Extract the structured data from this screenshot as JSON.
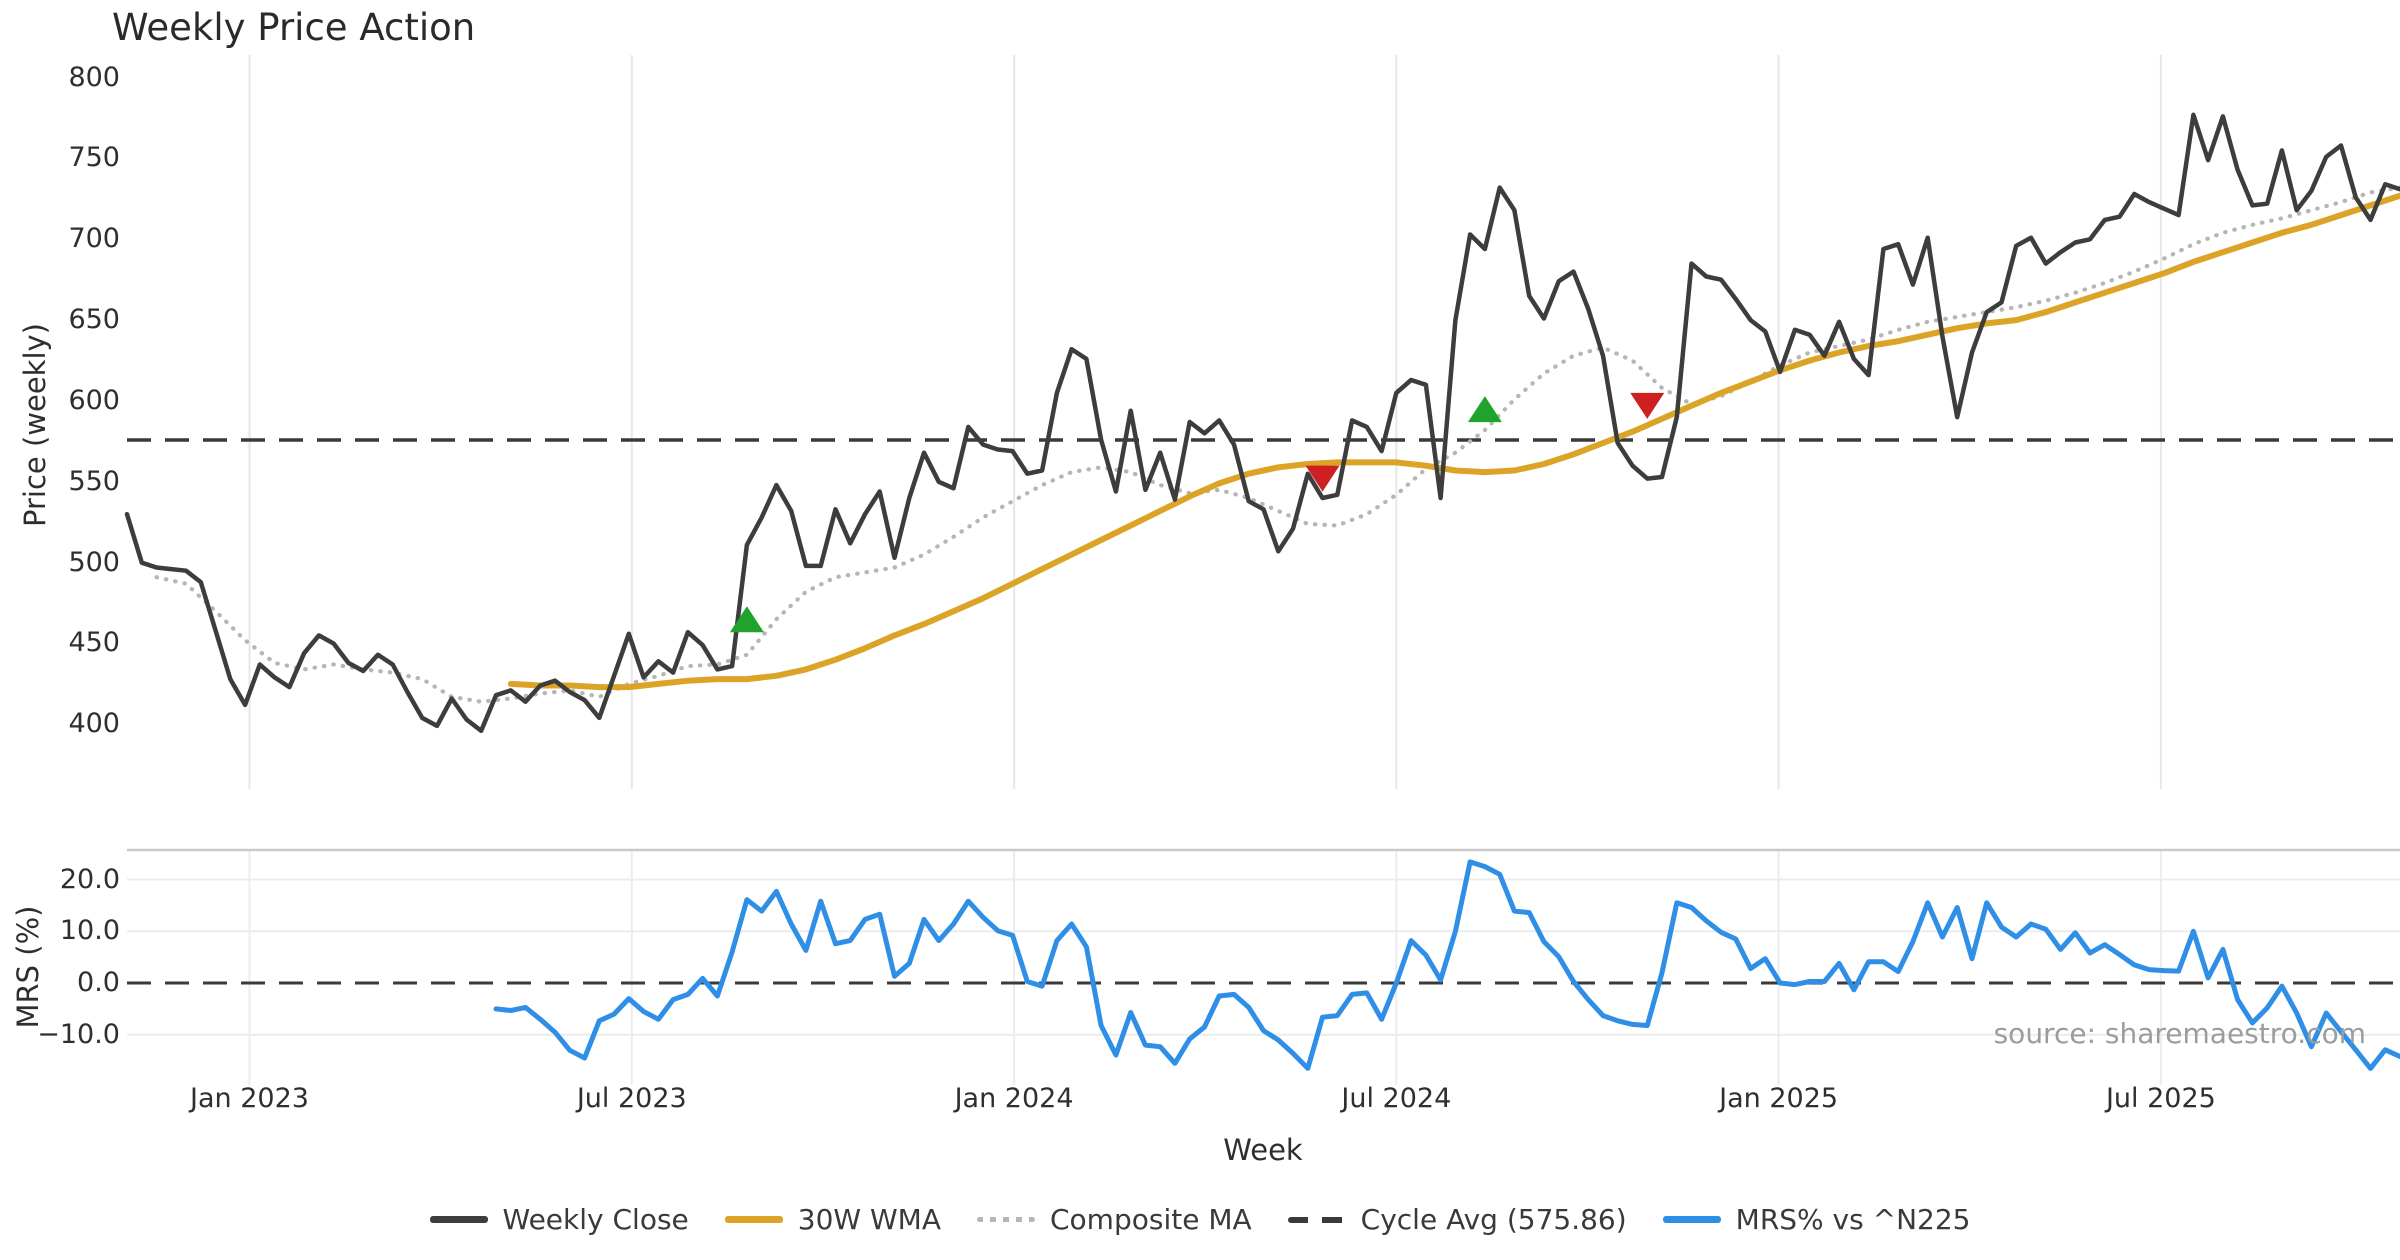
{
  "title": "Weekly Price Action",
  "source_note": "source: sharemaestro.com",
  "axes": {
    "price_label": "Price (weekly)",
    "mrs_label": "MRS (%)",
    "x_label": "Week"
  },
  "legend": {
    "items": [
      {
        "label": "Weekly Close",
        "color": "#3d3d3d",
        "style": "solid"
      },
      {
        "label": "30W WMA",
        "color": "#dba427",
        "style": "solid"
      },
      {
        "label": "Composite MA",
        "color": "#b6b6b6",
        "style": "dotted"
      },
      {
        "label": "Cycle Avg (575.86)",
        "color": "#3a3a3a",
        "style": "dashed"
      },
      {
        "label": "MRS% vs ^N225",
        "color": "#2f8fe6",
        "style": "solid"
      }
    ]
  },
  "chart_data": [
    {
      "type": "line",
      "panel": "price",
      "title": "Weekly Price Action",
      "ylabel": "Price (weekly)",
      "ylim": [
        360,
        814
      ],
      "yticks": [
        400,
        450,
        500,
        550,
        600,
        650,
        700,
        750,
        800
      ],
      "grid": "vertical-only",
      "x_axis": {
        "unit": "weeks",
        "total_weeks": 155,
        "tick_weeks": [
          8.3,
          34.2,
          60.1,
          86.0,
          111.9,
          137.8
        ],
        "tick_labels": [
          "Jan 2023",
          "Jul 2023",
          "Jan 2024",
          "Jul 2024",
          "Jan 2025",
          "Jul 2025"
        ]
      },
      "cycle_avg": {
        "name": "Cycle Avg",
        "value": 575.86,
        "color": "#3a3a3a",
        "style": "dashed"
      },
      "series": [
        {
          "name": "Weekly Close",
          "color": "#3d3d3d",
          "style": "solid",
          "width": 4.5,
          "start_week": 0,
          "step": 1,
          "values": [
            530,
            500,
            497,
            496,
            495,
            488,
            458,
            428,
            412,
            437,
            429,
            423,
            444,
            455,
            450,
            438,
            433,
            443,
            437,
            420,
            404,
            399,
            416,
            403,
            396,
            418,
            421,
            414,
            424,
            427,
            420,
            415,
            404,
            430,
            456,
            429,
            439,
            432,
            457,
            449,
            434,
            436,
            511,
            528,
            548,
            532,
            498,
            498,
            533,
            512,
            530,
            544,
            503,
            540,
            568,
            550,
            546,
            584,
            573,
            570,
            569,
            555,
            557,
            605,
            632,
            626,
            576,
            544,
            594,
            545,
            568,
            539,
            587,
            580,
            588,
            573,
            538,
            533,
            507,
            521,
            555,
            540,
            542,
            588,
            584,
            569,
            605,
            613,
            610,
            540,
            650,
            703,
            694,
            732,
            718,
            665,
            651,
            674,
            680,
            657,
            628,
            574,
            560,
            552,
            553,
            590,
            685,
            677,
            675,
            663,
            650,
            643,
            618,
            644,
            641,
            628,
            649,
            626,
            616,
            694,
            697,
            672,
            701,
            640,
            590,
            630,
            655,
            661,
            696,
            701,
            685,
            692,
            698,
            700,
            712,
            714,
            728,
            723,
            719,
            715,
            777,
            749,
            776,
            743,
            721,
            722,
            755,
            718,
            730,
            751,
            758,
            726,
            712,
            734,
            731
          ]
        },
        {
          "name": "30W WMA",
          "color": "#dba427",
          "style": "solid",
          "width": 6,
          "start_week": 26,
          "step": 2,
          "values": [
            425,
            424,
            424,
            423,
            423,
            425,
            427,
            428,
            428,
            430,
            434,
            440,
            447,
            455,
            462,
            470,
            478,
            487,
            496,
            505,
            514,
            523,
            532,
            541,
            549,
            555,
            559,
            561,
            562,
            562,
            562,
            560,
            557,
            556,
            557,
            561,
            567,
            574,
            581,
            589,
            597,
            605,
            612,
            619,
            625,
            630,
            634,
            637,
            641,
            645,
            648,
            650,
            655,
            661,
            667,
            673,
            679,
            686,
            692,
            698,
            704,
            709,
            715,
            721,
            727
          ]
        },
        {
          "name": "Composite MA",
          "color": "#b6b6b6",
          "style": "dotted",
          "width": 4.2,
          "start_week": 2,
          "step": 2,
          "values": [
            491,
            487,
            470,
            452,
            438,
            434,
            437,
            434,
            432,
            428,
            417,
            414,
            416,
            419,
            421,
            417,
            425,
            430,
            436,
            437,
            443,
            465,
            482,
            491,
            494,
            497,
            505,
            516,
            528,
            538,
            548,
            556,
            559,
            556,
            548,
            543,
            545,
            540,
            532,
            524,
            523,
            530,
            542,
            558,
            568,
            582,
            601,
            617,
            628,
            633,
            625,
            608,
            598,
            603,
            612,
            622,
            630,
            634,
            638,
            644,
            649,
            652,
            655,
            658,
            662,
            667,
            673,
            680,
            688,
            697,
            704,
            709,
            713,
            718,
            723,
            729,
            732
          ]
        }
      ],
      "signals": {
        "buy_color": "#1fa32c",
        "sell_color": "#ce2020",
        "points": [
          {
            "type": "buy",
            "week": 42,
            "value": 465
          },
          {
            "type": "sell",
            "week": 81,
            "value": 552
          },
          {
            "type": "buy",
            "week": 92,
            "value": 595
          },
          {
            "type": "sell",
            "week": 103,
            "value": 597
          }
        ]
      }
    },
    {
      "type": "line",
      "panel": "mrs",
      "ylabel": "MRS (%)",
      "xlabel": "Week",
      "ylim": [
        -19.7,
        25.7
      ],
      "yticks": [
        20,
        10,
        0,
        -10
      ],
      "ytick_labels": [
        "20.0",
        "10.0",
        "0.0",
        "−10.0"
      ],
      "grid": "horizontal-and-vertical",
      "zero_line": {
        "value": 0,
        "color": "#3a3a3a",
        "style": "dashed"
      },
      "series": [
        {
          "name": "MRS% vs ^N225",
          "color": "#2f8fe6",
          "style": "solid",
          "width": 5,
          "start_week": 25,
          "step": 1,
          "values": [
            -5.0,
            -5.3,
            -4.7,
            -7.0,
            -9.5,
            -13.0,
            -14.5,
            -7.3,
            -6.0,
            -3.0,
            -5.5,
            -7.0,
            -3.2,
            -2.2,
            0.9,
            -2.5,
            6.0,
            16.1,
            13.9,
            17.7,
            11.4,
            6.3,
            15.8,
            7.6,
            8.2,
            12.3,
            13.3,
            1.3,
            3.8,
            12.3,
            8.2,
            11.4,
            15.8,
            12.7,
            10.1,
            9.2,
            0.3,
            -0.6,
            8.2,
            11.4,
            7.0,
            -8.2,
            -13.9,
            -5.7,
            -12.0,
            -12.3,
            -15.5,
            -10.8,
            -8.5,
            -2.5,
            -2.2,
            -4.7,
            -9.2,
            -11.0,
            -13.6,
            -16.5,
            -6.6,
            -6.3,
            -2.2,
            -1.9,
            -7.0,
            0.0,
            8.2,
            5.4,
            0.6,
            10.0,
            23.4,
            22.5,
            21.0,
            13.9,
            13.6,
            8.0,
            5.1,
            0.3,
            -3.2,
            -6.3,
            -7.3,
            -8.0,
            -8.2,
            2.0,
            15.5,
            14.6,
            12.0,
            9.8,
            8.5,
            2.8,
            4.7,
            0.0,
            -0.3,
            0.3,
            0.3,
            3.8,
            -1.3,
            4.1,
            4.1,
            2.2,
            8.0,
            15.5,
            8.9,
            14.6,
            4.7,
            15.5,
            10.8,
            8.9,
            11.4,
            10.4,
            6.5,
            9.7,
            5.8,
            7.4,
            5.5,
            3.5,
            2.6,
            2.4,
            2.3,
            10.0,
            1.0,
            6.5,
            -3.2,
            -7.7,
            -4.8,
            -0.6,
            -5.8,
            -12.3,
            -5.8,
            -9.4,
            -12.9,
            -16.5,
            -12.9,
            -14.2,
            -13.5
          ]
        }
      ]
    }
  ]
}
